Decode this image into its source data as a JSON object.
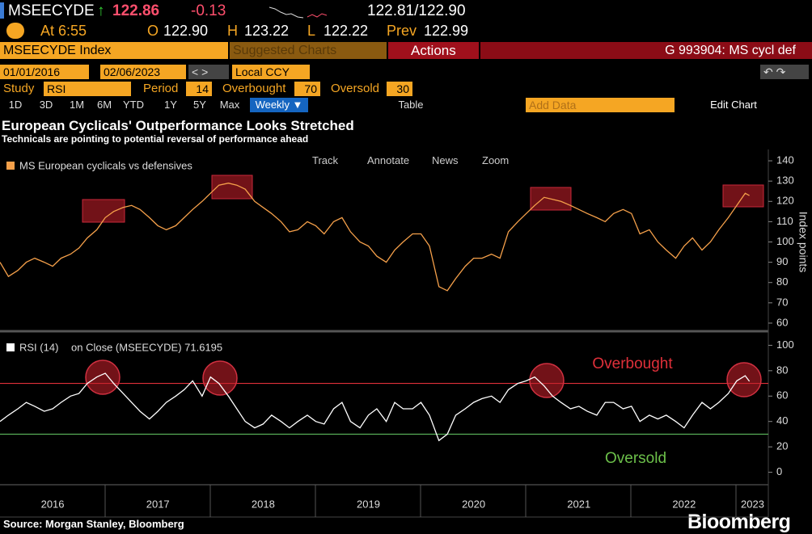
{
  "header": {
    "ticker": "MSEECYDE",
    "arrow": "↑",
    "last": "122.86",
    "change": "-0.13",
    "bid_ask": "122.81/122.90",
    "time": "At 6:55",
    "open_label": "O",
    "open": "122.90",
    "high_label": "H",
    "high": "123.22",
    "low_label": "L",
    "low": "122.22",
    "prev_label": "Prev",
    "prev": "122.99",
    "security": "MSEECYDE Index",
    "suggested": "Suggested Charts",
    "actions": "Actions",
    "group": "G 993904: MS cycl def",
    "start_date": "01/01/2016",
    "end_date": "02/06/2023",
    "currency": "Local CCY",
    "study_label": "Study",
    "study": "RSI",
    "period_label": "Period",
    "period": "14",
    "overbought_label": "Overbought",
    "overbought": "70",
    "oversold_label": "Oversold",
    "oversold": "30",
    "ranges": [
      "1D",
      "3D",
      "1M",
      "6M",
      "YTD",
      "1Y",
      "5Y",
      "Max"
    ],
    "frequency": "Weekly ▼",
    "table": "Table",
    "add_data": "Add Data",
    "edit_chart": "Edit Chart",
    "title": "European Cyclicals' Outperformance Looks Stretched",
    "subtitle": "Technicals are pointing to potential reversal of performance ahead",
    "tools": [
      "Track",
      "Annotate",
      "News",
      "Zoom"
    ],
    "source": "Source: Morgan Stanley, Bloomberg",
    "brand": "Bloomberg"
  },
  "chart_data": [
    {
      "type": "line",
      "y_label": "Index points",
      "xlim": [
        2016,
        2023.3
      ],
      "ylim": [
        56,
        144
      ],
      "yticks": [
        60,
        70,
        80,
        90,
        100,
        110,
        120,
        130,
        140
      ],
      "grid": false,
      "x": [
        2016.0,
        2016.08,
        2016.17,
        2016.25,
        2016.33,
        2016.42,
        2016.5,
        2016.58,
        2016.67,
        2016.75,
        2016.83,
        2016.92,
        2017.0,
        2017.08,
        2017.17,
        2017.25,
        2017.33,
        2017.42,
        2017.5,
        2017.58,
        2017.67,
        2017.75,
        2017.83,
        2017.92,
        2018.0,
        2018.08,
        2018.17,
        2018.25,
        2018.33,
        2018.42,
        2018.5,
        2018.58,
        2018.67,
        2018.75,
        2018.83,
        2018.92,
        2019.0,
        2019.08,
        2019.17,
        2019.25,
        2019.33,
        2019.42,
        2019.5,
        2019.58,
        2019.67,
        2019.75,
        2019.83,
        2019.92,
        2020.0,
        2020.08,
        2020.17,
        2020.25,
        2020.33,
        2020.42,
        2020.5,
        2020.58,
        2020.67,
        2020.75,
        2020.83,
        2020.92,
        2021.0,
        2021.08,
        2021.17,
        2021.25,
        2021.33,
        2021.42,
        2021.5,
        2021.58,
        2021.67,
        2021.75,
        2021.83,
        2021.92,
        2022.0,
        2022.08,
        2022.17,
        2022.25,
        2022.33,
        2022.42,
        2022.5,
        2022.58,
        2022.67,
        2022.75,
        2022.83,
        2022.92,
        2023.0,
        2023.08,
        2023.12
      ],
      "series": [
        {
          "name": "MS European cyclicals vs defensives",
          "color": "#f5a04a",
          "values": [
            90,
            83,
            86,
            90,
            92,
            90,
            88,
            92,
            94,
            97,
            102,
            106,
            112,
            115,
            117,
            118,
            116,
            112,
            108,
            106,
            108,
            112,
            116,
            120,
            124,
            128,
            129,
            128,
            126,
            120,
            117,
            114,
            110,
            105,
            106,
            110,
            108,
            104,
            110,
            112,
            105,
            100,
            98,
            93,
            90,
            96,
            100,
            104,
            104,
            98,
            78,
            76,
            82,
            88,
            92,
            92,
            94,
            92,
            105,
            110,
            114,
            118,
            122,
            121,
            120,
            118,
            116,
            114,
            112,
            110,
            114,
            116,
            114,
            104,
            106,
            100,
            96,
            92,
            98,
            102,
            96,
            100,
            106,
            112,
            118,
            124,
            122.86
          ]
        }
      ]
    },
    {
      "type": "line",
      "legend_detail": "on Close (MSEECYDE) 71.6195",
      "xlim": [
        2016,
        2023.3
      ],
      "ylim": [
        -6,
        106
      ],
      "yticks": [
        0,
        20,
        40,
        60,
        80,
        100
      ],
      "grid": false,
      "xticks": [
        {
          "value": 2016.5,
          "label": "2016"
        },
        {
          "value": 2017.5,
          "label": "2017"
        },
        {
          "value": 2018.5,
          "label": "2018"
        },
        {
          "value": 2019.5,
          "label": "2019"
        },
        {
          "value": 2020.5,
          "label": "2020"
        },
        {
          "value": 2021.5,
          "label": "2021"
        },
        {
          "value": 2022.5,
          "label": "2022"
        },
        {
          "value": 2023.15,
          "label": "2023"
        }
      ],
      "hlines": [
        {
          "value": 70,
          "color": "#e0303a"
        },
        {
          "value": 30,
          "color": "#5cb85c"
        }
      ],
      "annotations": [
        {
          "text": "Overbought",
          "color": "#e0303a"
        },
        {
          "text": "Oversold",
          "color": "#6cc04a"
        }
      ],
      "x": [
        2016.0,
        2016.08,
        2016.17,
        2016.25,
        2016.33,
        2016.42,
        2016.5,
        2016.58,
        2016.67,
        2016.75,
        2016.83,
        2016.92,
        2017.0,
        2017.08,
        2017.17,
        2017.25,
        2017.33,
        2017.42,
        2017.5,
        2017.58,
        2017.67,
        2017.75,
        2017.83,
        2017.92,
        2018.0,
        2018.08,
        2018.17,
        2018.25,
        2018.33,
        2018.42,
        2018.5,
        2018.58,
        2018.67,
        2018.75,
        2018.83,
        2018.92,
        2019.0,
        2019.08,
        2019.17,
        2019.25,
        2019.33,
        2019.42,
        2019.5,
        2019.58,
        2019.67,
        2019.75,
        2019.83,
        2019.92,
        2020.0,
        2020.08,
        2020.17,
        2020.25,
        2020.33,
        2020.42,
        2020.5,
        2020.58,
        2020.67,
        2020.75,
        2020.83,
        2020.92,
        2021.0,
        2021.08,
        2021.17,
        2021.25,
        2021.33,
        2021.42,
        2021.5,
        2021.58,
        2021.67,
        2021.75,
        2021.83,
        2021.92,
        2022.0,
        2022.08,
        2022.17,
        2022.25,
        2022.33,
        2022.42,
        2022.5,
        2022.58,
        2022.67,
        2022.75,
        2022.83,
        2022.92,
        2023.0,
        2023.08,
        2023.12
      ],
      "series": [
        {
          "name": "RSI (14)",
          "color": "#ffffff",
          "values": [
            40,
            45,
            50,
            55,
            52,
            48,
            50,
            55,
            60,
            62,
            70,
            75,
            78,
            70,
            62,
            55,
            48,
            42,
            48,
            55,
            60,
            65,
            72,
            60,
            75,
            70,
            60,
            50,
            40,
            35,
            38,
            45,
            40,
            35,
            40,
            45,
            40,
            38,
            50,
            55,
            40,
            35,
            45,
            50,
            40,
            55,
            50,
            50,
            55,
            45,
            25,
            30,
            45,
            50,
            55,
            58,
            60,
            55,
            65,
            70,
            72,
            75,
            68,
            60,
            55,
            50,
            52,
            48,
            45,
            55,
            55,
            50,
            52,
            40,
            45,
            42,
            45,
            40,
            35,
            45,
            55,
            50,
            55,
            62,
            72,
            76,
            71.6195
          ]
        }
      ]
    }
  ]
}
